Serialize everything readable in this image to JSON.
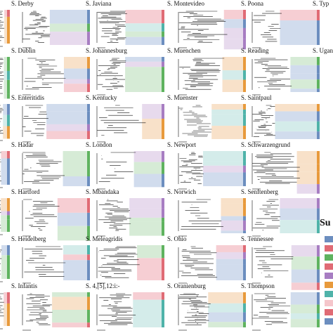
{
  "figure": {
    "rows": [
      [
        "S. Derby",
        "S. Javiana",
        "S. Montevideo",
        "S. Poona",
        "S. Typ"
      ],
      [
        "S. Dublin",
        "S. Johannesburg",
        "S. Muenchen",
        "S. Reading",
        "S. Ugan"
      ],
      [
        "S. Enteritidis",
        "S. Kentucky",
        "S. Muenster",
        "S. Saintpaul"
      ],
      [
        "S. Hadar",
        "S. London",
        "S. Newport",
        "S. Schwarzengrund"
      ],
      [
        "S. Hartford",
        "S. Mbandaka",
        "S. Norwich",
        "S. Senftenberg"
      ],
      [
        "S. Heidelberg",
        "S. Meleagridis",
        "S. Ohio",
        "S. Tennessee"
      ],
      [
        "S. Infantis",
        "S. 4,[5],12:i:-",
        "S. Oranienburg",
        "S. Thompson"
      ]
    ],
    "legend_title": "Su"
  }
}
